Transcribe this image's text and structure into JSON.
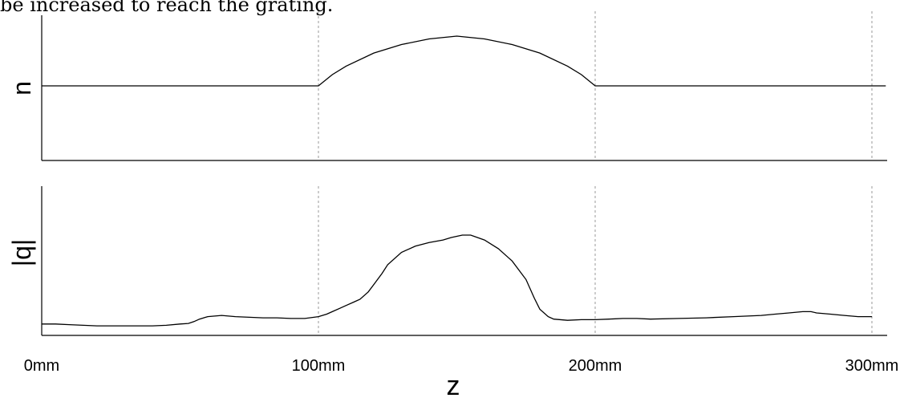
{
  "caption_text": "be increased to reach the grating.",
  "chart_data": [
    {
      "type": "line",
      "title": "",
      "ylabel": "n",
      "xlabel": "",
      "xlim": [
        0,
        305
      ],
      "grid": "dashed vertical lines at 100, 200, 300",
      "series": [
        {
          "x": [
            0,
            100,
            105,
            110,
            120,
            130,
            140,
            150,
            160,
            170,
            180,
            190,
            195,
            200,
            305
          ],
          "values": [
            0,
            0,
            0.12,
            0.21,
            0.35,
            0.44,
            0.5,
            0.53,
            0.5,
            0.44,
            0.35,
            0.21,
            0.12,
            0,
            0
          ]
        }
      ]
    },
    {
      "type": "line",
      "title": "",
      "ylabel": "|q|",
      "xlabel": "z",
      "xlim": [
        0,
        305
      ],
      "xticks": [
        "0mm",
        "100mm",
        "200mm",
        "300mm"
      ],
      "xtick_values": [
        0,
        100,
        200,
        300
      ],
      "grid": "dashed vertical lines at 100, 200, 300",
      "series": [
        {
          "x": [
            0,
            5,
            10,
            15,
            20,
            25,
            30,
            35,
            40,
            45,
            50,
            53,
            55,
            57,
            60,
            65,
            70,
            75,
            80,
            85,
            90,
            95,
            100,
            103,
            105,
            108,
            110,
            113,
            115,
            118,
            120,
            123,
            125,
            130,
            135,
            140,
            145,
            148,
            150,
            152,
            155,
            160,
            165,
            170,
            175,
            178,
            180,
            183,
            185,
            190,
            195,
            200,
            205,
            210,
            215,
            220,
            230,
            240,
            250,
            260,
            265,
            270,
            275,
            278,
            280,
            285,
            290,
            295,
            300
          ],
          "values": [
            0.04,
            0.04,
            0.035,
            0.03,
            0.025,
            0.025,
            0.025,
            0.025,
            0.025,
            0.03,
            0.04,
            0.045,
            0.06,
            0.08,
            0.1,
            0.11,
            0.1,
            0.095,
            0.09,
            0.09,
            0.085,
            0.085,
            0.1,
            0.12,
            0.14,
            0.17,
            0.19,
            0.22,
            0.24,
            0.3,
            0.36,
            0.45,
            0.52,
            0.62,
            0.67,
            0.7,
            0.72,
            0.74,
            0.75,
            0.76,
            0.76,
            0.72,
            0.65,
            0.55,
            0.4,
            0.25,
            0.16,
            0.1,
            0.08,
            0.07,
            0.075,
            0.075,
            0.08,
            0.085,
            0.085,
            0.08,
            0.085,
            0.09,
            0.1,
            0.11,
            0.12,
            0.13,
            0.14,
            0.14,
            0.13,
            0.12,
            0.11,
            0.1,
            0.1
          ]
        }
      ]
    }
  ]
}
